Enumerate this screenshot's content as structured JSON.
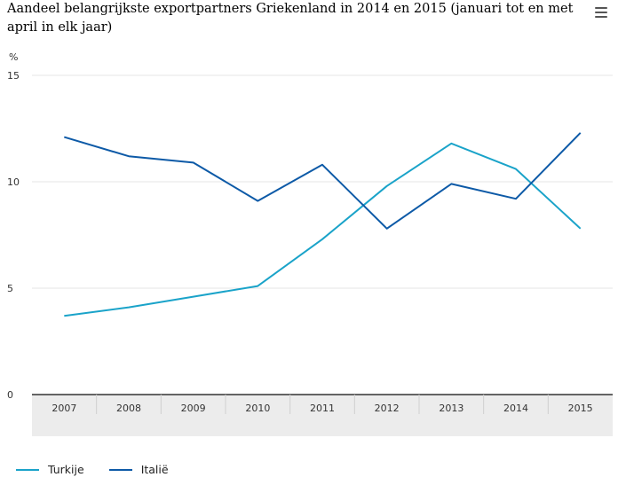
{
  "chart_data": {
    "type": "line",
    "title": "Aandeel belangrijkste exportpartners Griekenland in 2014 en 2015 (januari tot en met april in elk jaar)",
    "ylabel": "%",
    "xlabel": "",
    "categories": [
      "2007",
      "2008",
      "2009",
      "2010",
      "2011",
      "2012",
      "2013",
      "2014",
      "2015"
    ],
    "ylim": [
      0,
      15
    ],
    "yticks": [
      "0",
      "5",
      "10",
      "15"
    ],
    "grid": true,
    "legend_position": "bottom-left",
    "series": [
      {
        "name": "Turkije",
        "color": "#1AA3C9",
        "values": [
          3.7,
          4.1,
          4.6,
          5.1,
          7.3,
          9.8,
          11.8,
          10.6,
          7.8
        ]
      },
      {
        "name": "Italië",
        "color": "#0D5AA7",
        "values": [
          12.1,
          11.2,
          10.9,
          9.1,
          10.8,
          7.8,
          9.9,
          9.2,
          12.3
        ]
      }
    ]
  }
}
